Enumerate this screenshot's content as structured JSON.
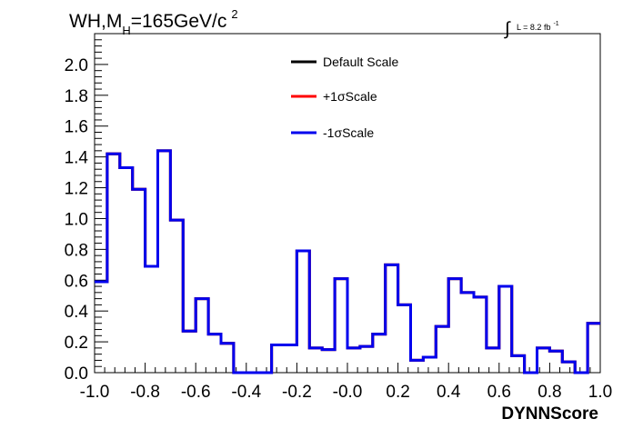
{
  "chart_data": {
    "type": "line",
    "style": "step-histogram",
    "title": {
      "main": "WH,M",
      "subscript": "H",
      "rest": "=165GeV/c",
      "superscript": "2"
    },
    "luminosity": {
      "integral_symbol": "∫",
      "text": "L = 8.2 fb",
      "superscript": "-1"
    },
    "xlabel": "DYNNScore",
    "ylabel": "",
    "xlim": [
      -1.0,
      1.0
    ],
    "ylim": [
      0.0,
      2.2
    ],
    "x_ticks": [
      "-1.0",
      "-0.8",
      "-0.6",
      "-0.4",
      "-0.2",
      "-0.0",
      "0.2",
      "0.4",
      "0.6",
      "0.8",
      "1.0"
    ],
    "y_ticks": [
      "0.0",
      "0.2",
      "0.4",
      "0.6",
      "0.8",
      "1.0",
      "1.2",
      "1.4",
      "1.6",
      "1.8",
      "2.0"
    ],
    "grid": false,
    "legend_position": "top-center",
    "bin_edges": [
      -1.0,
      -0.95,
      -0.9,
      -0.85,
      -0.8,
      -0.75,
      -0.7,
      -0.65,
      -0.6,
      -0.55,
      -0.5,
      -0.45,
      -0.4,
      -0.35,
      -0.3,
      -0.25,
      -0.2,
      -0.15,
      -0.1,
      -0.05,
      0.0,
      0.05,
      0.1,
      0.15,
      0.2,
      0.25,
      0.3,
      0.35,
      0.4,
      0.45,
      0.5,
      0.55,
      0.6,
      0.65,
      0.7,
      0.75,
      0.8,
      0.85,
      0.9,
      0.95,
      1.0
    ],
    "series": [
      {
        "name": "Default Scale",
        "color": "#000000",
        "values": [
          0.59,
          1.42,
          1.33,
          1.19,
          0.69,
          1.44,
          0.99,
          0.27,
          0.48,
          0.25,
          0.19,
          0.0,
          0.0,
          0.0,
          0.18,
          0.18,
          0.79,
          0.16,
          0.15,
          0.61,
          0.16,
          0.17,
          0.25,
          0.7,
          0.44,
          0.08,
          0.1,
          0.3,
          0.61,
          0.52,
          0.49,
          0.16,
          0.56,
          0.11,
          0.0,
          0.16,
          0.14,
          0.07,
          0.0,
          0.32
        ]
      },
      {
        "name": "+1σScale",
        "color": "#ff0000",
        "values": [
          0.59,
          1.42,
          1.33,
          1.19,
          0.69,
          1.44,
          0.99,
          0.27,
          0.48,
          0.25,
          0.19,
          0.0,
          0.0,
          0.0,
          0.18,
          0.18,
          0.79,
          0.16,
          0.15,
          0.61,
          0.16,
          0.17,
          0.25,
          0.7,
          0.44,
          0.08,
          0.1,
          0.3,
          0.61,
          0.52,
          0.49,
          0.16,
          0.56,
          0.11,
          0.0,
          0.16,
          0.14,
          0.07,
          0.0,
          0.32
        ]
      },
      {
        "name": "-1σScale",
        "color": "#0000ee",
        "values": [
          0.59,
          1.42,
          1.33,
          1.19,
          0.69,
          1.44,
          0.99,
          0.27,
          0.48,
          0.25,
          0.19,
          0.0,
          0.0,
          0.0,
          0.18,
          0.18,
          0.79,
          0.16,
          0.15,
          0.61,
          0.16,
          0.17,
          0.25,
          0.7,
          0.44,
          0.08,
          0.1,
          0.3,
          0.61,
          0.52,
          0.49,
          0.16,
          0.56,
          0.11,
          0.0,
          0.16,
          0.14,
          0.07,
          0.0,
          0.32
        ]
      }
    ]
  }
}
